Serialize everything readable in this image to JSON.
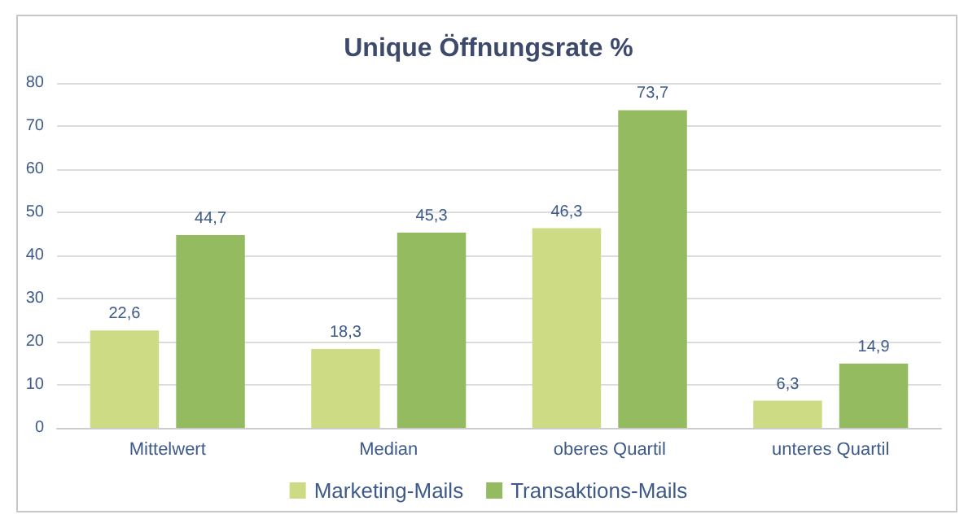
{
  "chart_data": {
    "type": "bar",
    "title": "Unique Öffnungsrate %",
    "categories": [
      "Mittelwert",
      "Median",
      "oberes Quartil",
      "unteres Quartil"
    ],
    "series": [
      {
        "name": "Marketing-Mails",
        "color": "#cddc84",
        "values": [
          22.6,
          18.3,
          46.3,
          6.3
        ],
        "value_labels": [
          "22,6",
          "18,3",
          "46,3",
          "6,3"
        ]
      },
      {
        "name": "Transaktions-Mails",
        "color": "#94bb5f",
        "values": [
          44.7,
          45.3,
          73.7,
          14.9
        ],
        "value_labels": [
          "44,7",
          "45,3",
          "73,7",
          "14,9"
        ]
      }
    ],
    "ylim": [
      0,
      80
    ],
    "yticks": [
      0,
      10,
      20,
      30,
      40,
      50,
      60,
      70,
      80
    ],
    "grid": "y",
    "legend": "bottom"
  }
}
